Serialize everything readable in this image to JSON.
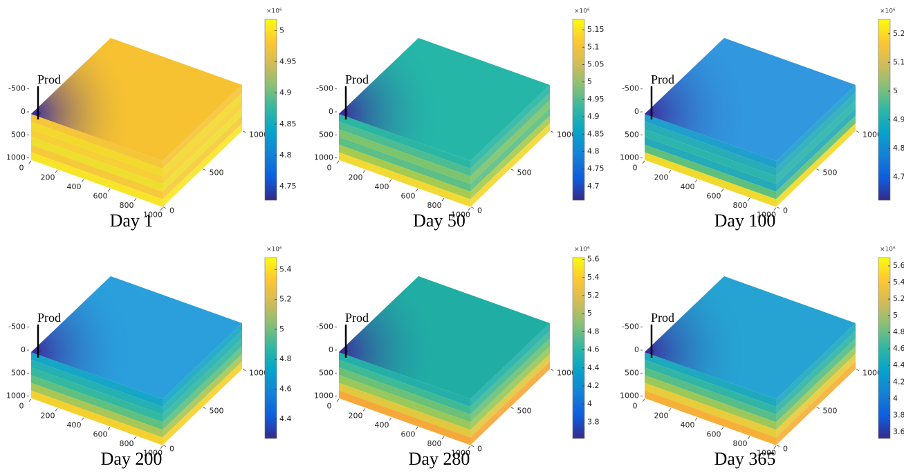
{
  "chart_data": [
    {
      "type": "surface3d",
      "title": "Day 1",
      "annotation": "Prod",
      "exponent_label": "×10⁶",
      "clim": [
        4.728,
        5.018
      ],
      "cticks": [
        4.75,
        4.8,
        4.85,
        4.9,
        4.95,
        5
      ],
      "xlim": [
        0,
        1000
      ],
      "xticks": [
        0,
        200,
        400,
        600,
        800,
        1000
      ],
      "ylim": [
        0,
        1000
      ],
      "yticks": [
        0,
        500,
        1000
      ],
      "zlim": [
        -500,
        1000
      ],
      "zticks": [
        -500,
        0,
        500,
        1000
      ],
      "well_color": "#3b2c9c",
      "top_color": "#f6c232",
      "side_colors": [
        "#f5c63a",
        "#f2d92c",
        "#f7cf36",
        "#eedf2e",
        "#f6c93a",
        "#f8e52a"
      ]
    },
    {
      "type": "surface3d",
      "title": "Day 50",
      "annotation": "Prod",
      "exponent_label": "×10⁶",
      "clim": [
        4.66,
        5.18
      ],
      "cticks": [
        4.7,
        4.75,
        4.8,
        4.85,
        4.9,
        4.95,
        5,
        5.05,
        5.1,
        5.15
      ],
      "xlim": [
        0,
        1000
      ],
      "xticks": [
        0,
        200,
        400,
        600,
        800,
        1000
      ],
      "ylim": [
        0,
        1000
      ],
      "yticks": [
        0,
        500,
        1000
      ],
      "zlim": [
        -500,
        1000
      ],
      "zticks": [
        -500,
        0,
        500,
        1000
      ],
      "well_color": "#3b2c9c",
      "top_color": "#25b6a8",
      "side_colors": [
        "#2bb6a3",
        "#4dbc91",
        "#7cc56e",
        "#5dbf86",
        "#a7cb4f",
        "#f2d933"
      ]
    },
    {
      "type": "surface3d",
      "title": "Day 100",
      "annotation": "Prod",
      "exponent_label": "×10⁶",
      "clim": [
        4.62,
        5.25
      ],
      "cticks": [
        4.7,
        4.8,
        4.9,
        5,
        5.1,
        5.2
      ],
      "xlim": [
        0,
        1000
      ],
      "xticks": [
        0,
        200,
        400,
        600,
        800,
        1000
      ],
      "ylim": [
        0,
        1000
      ],
      "yticks": [
        0,
        500,
        1000
      ],
      "zlim": [
        -500,
        1000
      ],
      "zticks": [
        -500,
        0,
        500,
        1000
      ],
      "well_color": "#3b2c9c",
      "top_color": "#3197df",
      "side_colors": [
        "#1fa0cc",
        "#27acb8",
        "#2db5ad",
        "#24aab8",
        "#5fc07e",
        "#f0da2d"
      ]
    },
    {
      "type": "surface3d",
      "title": "Day 200",
      "annotation": "Prod",
      "exponent_label": "×10⁶",
      "clim": [
        4.27,
        5.48
      ],
      "cticks": [
        4.4,
        4.6,
        4.8,
        5,
        5.2,
        5.4
      ],
      "xlim": [
        0,
        1000
      ],
      "xticks": [
        0,
        200,
        400,
        600,
        800,
        1000
      ],
      "ylim": [
        0,
        1000
      ],
      "yticks": [
        0,
        500,
        1000
      ],
      "zlim": [
        -500,
        1000
      ],
      "zticks": [
        -500,
        0,
        500,
        1000
      ],
      "well_color": "#3b2c9c",
      "top_color": "#2a9fdc",
      "side_colors": [
        "#16a6c6",
        "#25b0b2",
        "#35b8a0",
        "#60c07f",
        "#a9c756",
        "#f5d12f"
      ]
    },
    {
      "type": "surface3d",
      "title": "Day 280",
      "annotation": "Prod",
      "exponent_label": "×10⁶",
      "clim": [
        3.62,
        5.62
      ],
      "cticks": [
        3.8,
        4,
        4.2,
        4.4,
        4.6,
        4.8,
        5,
        5.2,
        5.4,
        5.6
      ],
      "xlim": [
        0,
        1000
      ],
      "xticks": [
        0,
        200,
        400,
        600,
        800,
        1000
      ],
      "ylim": [
        0,
        1000
      ],
      "yticks": [
        0,
        500,
        1000
      ],
      "zlim": [
        -500,
        1000
      ],
      "zticks": [
        -500,
        0,
        500,
        1000
      ],
      "well_color": "#3b2c9c",
      "top_color": "#20aea4",
      "side_colors": [
        "#24b0a8",
        "#3fba95",
        "#6cc177",
        "#98c95a",
        "#e0c93f",
        "#f7a83a"
      ]
    },
    {
      "type": "surface3d",
      "title": "Day 365",
      "annotation": "Prod",
      "exponent_label": "×10⁶",
      "clim": [
        3.52,
        5.7
      ],
      "cticks": [
        3.6,
        3.8,
        4,
        4.2,
        4.4,
        4.6,
        4.8,
        5,
        5.2,
        5.4,
        5.6
      ],
      "xlim": [
        0,
        1000
      ],
      "xticks": [
        0,
        200,
        400,
        600,
        800,
        1000
      ],
      "ylim": [
        0,
        1000
      ],
      "yticks": [
        0,
        500,
        1000
      ],
      "zlim": [
        -500,
        1000
      ],
      "zticks": [
        -500,
        0,
        500,
        1000
      ],
      "well_color": "#3b2c9c",
      "top_color": "#26a3d2",
      "side_colors": [
        "#1ea9bd",
        "#33b5a5",
        "#58be88",
        "#9cc85a",
        "#e8cc3b",
        "#f6b03a"
      ]
    }
  ]
}
